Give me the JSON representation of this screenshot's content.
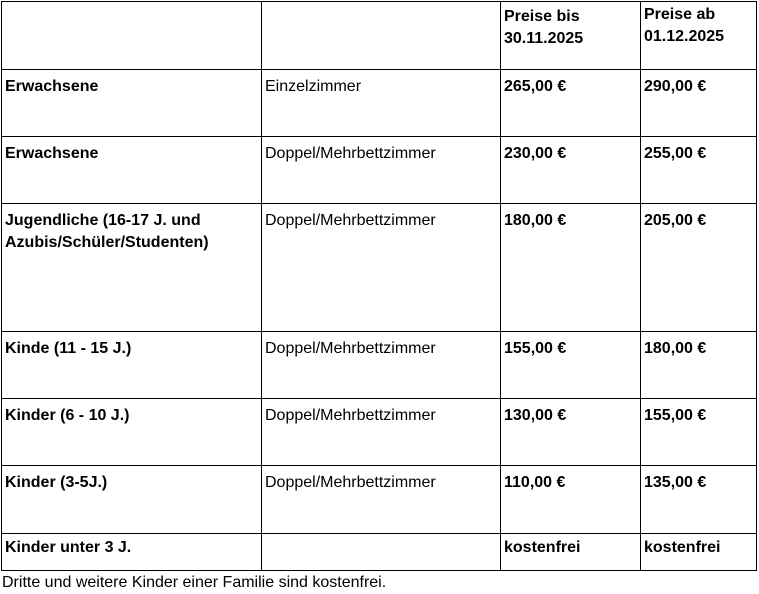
{
  "table": {
    "headers": [
      "",
      "",
      "Preise bis 30.11.2025",
      "Preise ab 01.12.2025"
    ],
    "rows": [
      {
        "group": "Erwachsene",
        "room": "Einzelzimmer",
        "price_until": "265,00 €",
        "price_from": "290,00 €"
      },
      {
        "group": "Erwachsene",
        "room": "Doppel/Mehrbettzimmer",
        "price_until": "230,00 €",
        "price_from": "255,00 €"
      },
      {
        "group": "Jugendliche (16-17 J. und Azubis/Schüler/Studenten)",
        "room": "Doppel/Mehrbettzimmer",
        "price_until": "180,00 €",
        "price_from": "205,00 €"
      },
      {
        "group": "Kinde (11 - 15 J.)",
        "room": "Doppel/Mehrbettzimmer",
        "price_until": "155,00 €",
        "price_from": "180,00 €"
      },
      {
        "group": "Kinder (6 - 10 J.)",
        "room": "Doppel/Mehrbettzimmer",
        "price_until": "130,00 €",
        "price_from": "155,00 €"
      },
      {
        "group": "Kinder (3-5J.)",
        "room": "Doppel/Mehrbettzimmer",
        "price_until": "110,00 €",
        "price_from": "135,00 €"
      },
      {
        "group": "Kinder unter 3 J.",
        "room": "",
        "price_until": "kostenfrei",
        "price_from": "kostenfrei"
      }
    ]
  },
  "note": "Dritte und weitere Kinder einer Familie sind kostenfrei."
}
